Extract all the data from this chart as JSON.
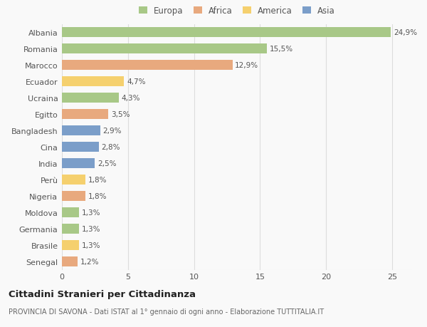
{
  "countries": [
    "Albania",
    "Romania",
    "Marocco",
    "Ecuador",
    "Ucraina",
    "Egitto",
    "Bangladesh",
    "Cina",
    "India",
    "Perù",
    "Nigeria",
    "Moldova",
    "Germania",
    "Brasile",
    "Senegal"
  ],
  "values": [
    24.9,
    15.5,
    12.9,
    4.7,
    4.3,
    3.5,
    2.9,
    2.8,
    2.5,
    1.8,
    1.8,
    1.3,
    1.3,
    1.3,
    1.2
  ],
  "labels": [
    "24,9%",
    "15,5%",
    "12,9%",
    "4,7%",
    "4,3%",
    "3,5%",
    "2,9%",
    "2,8%",
    "2,5%",
    "1,8%",
    "1,8%",
    "1,3%",
    "1,3%",
    "1,3%",
    "1,2%"
  ],
  "continents": [
    "Europa",
    "Europa",
    "Africa",
    "America",
    "Europa",
    "Africa",
    "Asia",
    "Asia",
    "Asia",
    "America",
    "Africa",
    "Europa",
    "Europa",
    "America",
    "Africa"
  ],
  "colors": {
    "Europa": "#a8c887",
    "Africa": "#e8a97e",
    "America": "#f5d06e",
    "Asia": "#7b9ec9"
  },
  "xlim": [
    0,
    26.5
  ],
  "xticks": [
    0,
    5,
    10,
    15,
    20,
    25
  ],
  "title": "Cittadini Stranieri per Cittadinanza",
  "subtitle": "PROVINCIA DI SAVONA - Dati ISTAT al 1° gennaio di ogni anno - Elaborazione TUTTITALIA.IT",
  "background_color": "#f9f9f9",
  "grid_color": "#dddddd",
  "bar_height": 0.6,
  "text_color": "#555555",
  "title_color": "#222222",
  "subtitle_color": "#666666",
  "label_fontsize": 7.5,
  "ytick_fontsize": 8.0,
  "xtick_fontsize": 8.0,
  "legend_fontsize": 8.5,
  "title_fontsize": 9.5,
  "subtitle_fontsize": 7.0
}
